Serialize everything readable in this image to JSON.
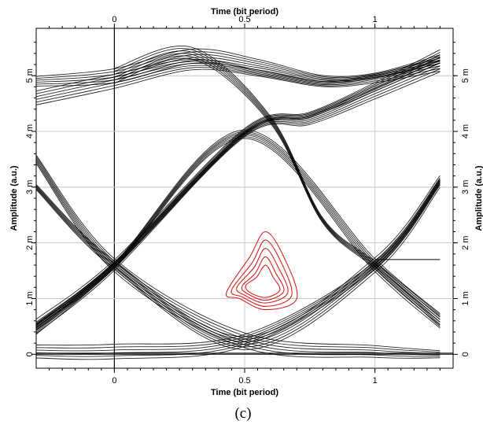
{
  "chart_data": {
    "type": "line",
    "subtype": "eye diagram",
    "caption": "(c)",
    "xlabel_top": "Time (bit period)",
    "xlabel_bottom": "Time (bit period)",
    "ylabel_left": "Amplitude (a.u.)",
    "ylabel_right": "Amplitude (a.u.)",
    "xlim": [
      -0.3,
      1.3
    ],
    "ylim": [
      -0.25,
      5.85
    ],
    "x_ticks": [
      {
        "value": 0,
        "label": "0"
      },
      {
        "value": 0.5,
        "label": "0.5"
      },
      {
        "value": 1,
        "label": "1"
      }
    ],
    "y_ticks": [
      {
        "value": 0,
        "label": "0"
      },
      {
        "value": 1,
        "label": "1 m"
      },
      {
        "value": 2,
        "label": "2 m"
      },
      {
        "value": 3,
        "label": "3 m"
      },
      {
        "value": 4,
        "label": "4 m"
      },
      {
        "value": 5,
        "label": "5 m"
      }
    ],
    "grid": true,
    "trace_color": "#000000",
    "contour_color": "#d42020",
    "series": [
      {
        "values": [
          {
            "x": -0.3,
            "y": 4.9
          },
          {
            "x": 0.0,
            "y": 5.0
          },
          {
            "x": 0.3,
            "y": 5.35
          },
          {
            "x": 0.55,
            "y": 5.2
          },
          {
            "x": 0.8,
            "y": 4.95
          },
          {
            "x": 1.0,
            "y": 5.0
          },
          {
            "x": 1.25,
            "y": 5.3
          }
        ]
      },
      {
        "values": [
          {
            "x": -0.3,
            "y": 4.6
          },
          {
            "x": 0.0,
            "y": 4.9
          },
          {
            "x": 0.3,
            "y": 5.2
          },
          {
            "x": 0.55,
            "y": 5.05
          },
          {
            "x": 0.8,
            "y": 4.85
          },
          {
            "x": 1.0,
            "y": 4.95
          },
          {
            "x": 1.25,
            "y": 5.2
          }
        ]
      },
      {
        "values": [
          {
            "x": -0.3,
            "y": 0.5
          },
          {
            "x": 0.0,
            "y": 1.6
          },
          {
            "x": 0.5,
            "y": 4.0
          },
          {
            "x": 0.75,
            "y": 4.3
          },
          {
            "x": 1.0,
            "y": 4.8
          },
          {
            "x": 1.25,
            "y": 5.35
          }
        ]
      },
      {
        "values": [
          {
            "x": -0.3,
            "y": 0.45
          },
          {
            "x": 0.0,
            "y": 1.6
          },
          {
            "x": 0.5,
            "y": 3.95
          },
          {
            "x": 0.75,
            "y": 4.2
          },
          {
            "x": 1.0,
            "y": 4.7
          },
          {
            "x": 1.25,
            "y": 5.2
          }
        ]
      },
      {
        "values": [
          {
            "x": -0.3,
            "y": 0.5
          },
          {
            "x": 0.0,
            "y": 1.6
          },
          {
            "x": 0.5,
            "y": 3.95
          },
          {
            "x": 1.0,
            "y": 1.6
          },
          {
            "x": 1.25,
            "y": 0.6
          }
        ]
      },
      {
        "values": [
          {
            "x": -0.3,
            "y": 3.0
          },
          {
            "x": 0.0,
            "y": 1.6
          },
          {
            "x": 0.5,
            "y": 0.2
          },
          {
            "x": 1.0,
            "y": 1.6
          },
          {
            "x": 1.25,
            "y": 3.1
          }
        ]
      },
      {
        "values": [
          {
            "x": -0.3,
            "y": 3.5
          },
          {
            "x": 0.0,
            "y": 1.6
          },
          {
            "x": 0.5,
            "y": 0.25
          },
          {
            "x": 1.0,
            "y": 0.05
          },
          {
            "x": 1.25,
            "y": 0.0
          }
        ]
      },
      {
        "values": [
          {
            "x": -0.3,
            "y": 0.05
          },
          {
            "x": 0.0,
            "y": 0.05
          },
          {
            "x": 0.5,
            "y": 0.25
          },
          {
            "x": 1.0,
            "y": 1.6
          },
          {
            "x": 1.25,
            "y": 3.1
          }
        ]
      },
      {
        "values": [
          {
            "x": 0.0,
            "y": 5.0
          },
          {
            "x": 0.3,
            "y": 5.4
          },
          {
            "x": 0.6,
            "y": 4.2
          },
          {
            "x": 0.8,
            "y": 2.4
          },
          {
            "x": 1.0,
            "y": 1.6
          },
          {
            "x": 1.25,
            "y": 0.6
          }
        ]
      },
      {
        "values": [
          {
            "x": -0.3,
            "y": 0.02
          },
          {
            "x": 1.3,
            "y": 0.02
          }
        ]
      },
      {
        "values": [
          {
            "x": 1.0,
            "y": 1.7
          },
          {
            "x": 1.25,
            "y": 1.7
          }
        ]
      }
    ],
    "contours": [
      {
        "values": [
          {
            "x": 0.58,
            "y": 2.2
          },
          {
            "x": 0.65,
            "y": 1.75
          },
          {
            "x": 0.7,
            "y": 1.0
          },
          {
            "x": 0.58,
            "y": 0.8
          },
          {
            "x": 0.48,
            "y": 1.0
          },
          {
            "x": 0.43,
            "y": 1.1
          },
          {
            "x": 0.52,
            "y": 1.75
          }
        ]
      },
      {
        "values": [
          {
            "x": 0.58,
            "y": 2.05
          },
          {
            "x": 0.64,
            "y": 1.65
          },
          {
            "x": 0.68,
            "y": 1.05
          },
          {
            "x": 0.58,
            "y": 0.86
          },
          {
            "x": 0.49,
            "y": 1.03
          },
          {
            "x": 0.45,
            "y": 1.15
          },
          {
            "x": 0.53,
            "y": 1.65
          }
        ]
      },
      {
        "values": [
          {
            "x": 0.58,
            "y": 1.9
          },
          {
            "x": 0.63,
            "y": 1.55
          },
          {
            "x": 0.665,
            "y": 1.1
          },
          {
            "x": 0.58,
            "y": 0.92
          },
          {
            "x": 0.5,
            "y": 1.06
          },
          {
            "x": 0.47,
            "y": 1.2
          },
          {
            "x": 0.535,
            "y": 1.55
          }
        ]
      },
      {
        "values": [
          {
            "x": 0.58,
            "y": 1.75
          },
          {
            "x": 0.62,
            "y": 1.45
          },
          {
            "x": 0.65,
            "y": 1.13
          },
          {
            "x": 0.58,
            "y": 0.97
          },
          {
            "x": 0.51,
            "y": 1.09
          },
          {
            "x": 0.49,
            "y": 1.22
          },
          {
            "x": 0.54,
            "y": 1.45
          }
        ]
      },
      {
        "values": [
          {
            "x": 0.58,
            "y": 1.6
          },
          {
            "x": 0.61,
            "y": 1.38
          },
          {
            "x": 0.635,
            "y": 1.15
          },
          {
            "x": 0.58,
            "y": 1.02
          },
          {
            "x": 0.52,
            "y": 1.11
          },
          {
            "x": 0.505,
            "y": 1.24
          },
          {
            "x": 0.545,
            "y": 1.38
          }
        ]
      }
    ]
  }
}
